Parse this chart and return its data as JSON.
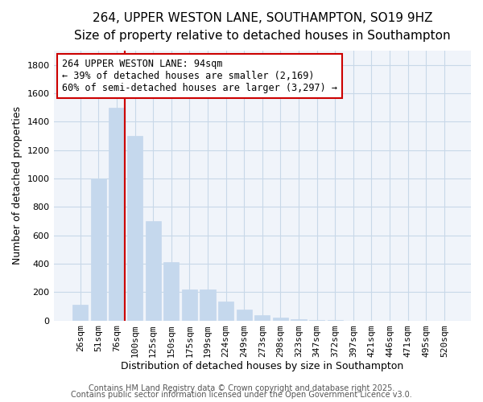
{
  "title": "264, UPPER WESTON LANE, SOUTHAMPTON, SO19 9HZ",
  "subtitle": "Size of property relative to detached houses in Southampton",
  "xlabel": "Distribution of detached houses by size in Southampton",
  "ylabel": "Number of detached properties",
  "categories": [
    "26sqm",
    "51sqm",
    "76sqm",
    "100sqm",
    "125sqm",
    "150sqm",
    "175sqm",
    "199sqm",
    "224sqm",
    "249sqm",
    "273sqm",
    "298sqm",
    "323sqm",
    "347sqm",
    "372sqm",
    "397sqm",
    "421sqm",
    "446sqm",
    "471sqm",
    "495sqm",
    "520sqm"
  ],
  "values": [
    110,
    1000,
    1500,
    1300,
    700,
    410,
    220,
    220,
    135,
    75,
    40,
    22,
    10,
    5,
    2,
    0,
    0,
    0,
    0,
    0,
    0
  ],
  "bar_color": "#c5d8ed",
  "bar_edgecolor": "#c5d8ed",
  "vline_x_index": 2,
  "vline_color": "#cc0000",
  "annotation_text_line1": "264 UPPER WESTON LANE: 94sqm",
  "annotation_text_line2": "← 39% of detached houses are smaller (2,169)",
  "annotation_text_line3": "60% of semi-detached houses are larger (3,297) →",
  "annotation_box_facecolor": "white",
  "annotation_box_edgecolor": "#cc0000",
  "background_color": "#ffffff",
  "plot_background": "#f0f4fa",
  "grid_color": "#c8d8e8",
  "ylim": [
    0,
    1900
  ],
  "yticks": [
    0,
    200,
    400,
    600,
    800,
    1000,
    1200,
    1400,
    1600,
    1800
  ],
  "title_fontsize": 11,
  "subtitle_fontsize": 9.5,
  "xlabel_fontsize": 9,
  "ylabel_fontsize": 9,
  "tick_fontsize": 8,
  "annotation_fontsize": 8.5,
  "footer_fontsize": 7,
  "footer_text1": "Contains HM Land Registry data © Crown copyright and database right 2025.",
  "footer_text2": "Contains public sector information licensed under the Open Government Licence v3.0."
}
